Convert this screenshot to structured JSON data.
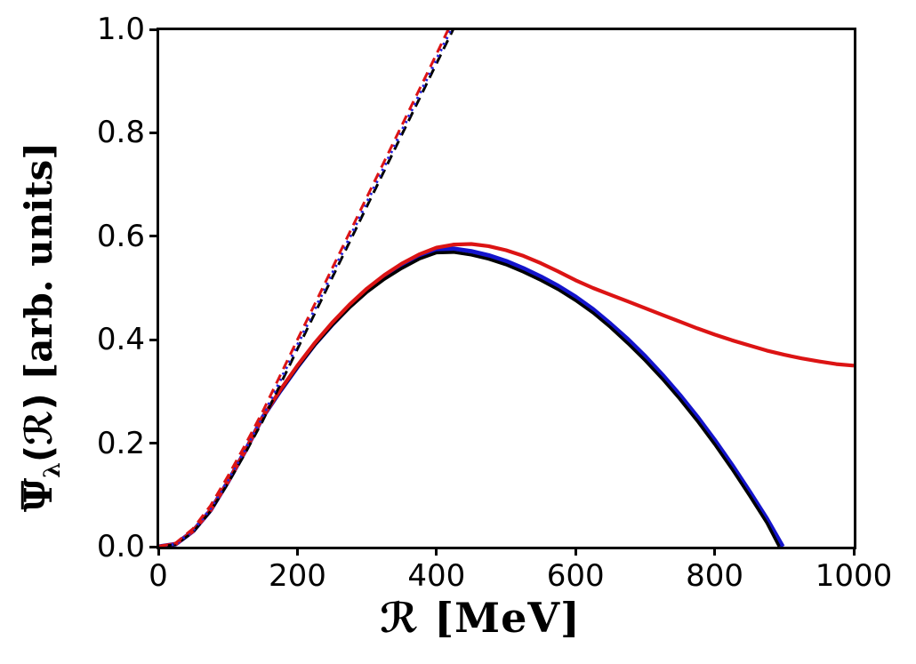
{
  "figure": {
    "background": "#ffffff",
    "xlabel": {
      "symbol": "ℛ",
      "unit": " [MeV]"
    },
    "ylabel": {
      "symbol": "Ψ",
      "has_overbar": true,
      "subscript": "λ",
      "arg": "(ℛ)",
      "unit": " [arb. units]"
    }
  },
  "chart_data": {
    "type": "line",
    "title": "",
    "xlabel": "R [MeV]",
    "ylabel": "Psi-bar_lambda(R) [arb. units]",
    "xlim": [
      0,
      1000
    ],
    "ylim": [
      0,
      1.0
    ],
    "grid": false,
    "legend": "none",
    "axis_color": "#000000",
    "x_ticks": [
      0,
      200,
      400,
      600,
      800,
      1000
    ],
    "x_tick_labels": [
      "0",
      "200",
      "400",
      "600",
      "800",
      "1000"
    ],
    "y_ticks": [
      0.0,
      0.2,
      0.4,
      0.6,
      0.8,
      1.0
    ],
    "y_tick_labels": [
      "0.0",
      "0.2",
      "0.4",
      "0.6",
      "0.8",
      "1.0"
    ],
    "series": [
      {
        "name": "blue-solid",
        "color": "#1414cc",
        "style": "solid",
        "width": 5,
        "points": [
          [
            0,
            0
          ],
          [
            25,
            0.005
          ],
          [
            50,
            0.03
          ],
          [
            75,
            0.07
          ],
          [
            100,
            0.125
          ],
          [
            125,
            0.185
          ],
          [
            150,
            0.25
          ],
          [
            175,
            0.3
          ],
          [
            200,
            0.347
          ],
          [
            225,
            0.391
          ],
          [
            250,
            0.429
          ],
          [
            275,
            0.464
          ],
          [
            300,
            0.494
          ],
          [
            325,
            0.52
          ],
          [
            350,
            0.543
          ],
          [
            375,
            0.562
          ],
          [
            400,
            0.574
          ],
          [
            425,
            0.576
          ],
          [
            450,
            0.571
          ],
          [
            475,
            0.563
          ],
          [
            500,
            0.552
          ],
          [
            525,
            0.538
          ],
          [
            550,
            0.522
          ],
          [
            575,
            0.504
          ],
          [
            600,
            0.483
          ],
          [
            625,
            0.459
          ],
          [
            650,
            0.431
          ],
          [
            675,
            0.401
          ],
          [
            700,
            0.368
          ],
          [
            725,
            0.332
          ],
          [
            750,
            0.293
          ],
          [
            775,
            0.251
          ],
          [
            800,
            0.206
          ],
          [
            825,
            0.158
          ],
          [
            850,
            0.107
          ],
          [
            875,
            0.054
          ],
          [
            898,
            0
          ]
        ]
      },
      {
        "name": "black-solid",
        "color": "#000000",
        "style": "solid",
        "width": 3.5,
        "points": [
          [
            0,
            0
          ],
          [
            25,
            0.005
          ],
          [
            50,
            0.03
          ],
          [
            75,
            0.07
          ],
          [
            100,
            0.125
          ],
          [
            125,
            0.185
          ],
          [
            150,
            0.25
          ],
          [
            175,
            0.3
          ],
          [
            200,
            0.347
          ],
          [
            225,
            0.39
          ],
          [
            250,
            0.428
          ],
          [
            275,
            0.462
          ],
          [
            300,
            0.492
          ],
          [
            325,
            0.517
          ],
          [
            350,
            0.538
          ],
          [
            375,
            0.556
          ],
          [
            400,
            0.568
          ],
          [
            425,
            0.569
          ],
          [
            450,
            0.564
          ],
          [
            475,
            0.556
          ],
          [
            500,
            0.545
          ],
          [
            525,
            0.531
          ],
          [
            550,
            0.515
          ],
          [
            575,
            0.497
          ],
          [
            600,
            0.476
          ],
          [
            625,
            0.452
          ],
          [
            650,
            0.424
          ],
          [
            675,
            0.393
          ],
          [
            700,
            0.36
          ],
          [
            725,
            0.324
          ],
          [
            750,
            0.285
          ],
          [
            775,
            0.243
          ],
          [
            800,
            0.198
          ],
          [
            825,
            0.15
          ],
          [
            850,
            0.099
          ],
          [
            875,
            0.046
          ],
          [
            893,
            0
          ]
        ]
      },
      {
        "name": "red-solid",
        "color": "#dc1414",
        "style": "solid",
        "width": 4.2,
        "points": [
          [
            0,
            0
          ],
          [
            25,
            0.005
          ],
          [
            50,
            0.03
          ],
          [
            75,
            0.07
          ],
          [
            100,
            0.125
          ],
          [
            125,
            0.185
          ],
          [
            150,
            0.25
          ],
          [
            175,
            0.302
          ],
          [
            200,
            0.35
          ],
          [
            225,
            0.394
          ],
          [
            250,
            0.433
          ],
          [
            275,
            0.468
          ],
          [
            300,
            0.499
          ],
          [
            325,
            0.525
          ],
          [
            350,
            0.547
          ],
          [
            375,
            0.565
          ],
          [
            400,
            0.578
          ],
          [
            425,
            0.584
          ],
          [
            450,
            0.585
          ],
          [
            475,
            0.581
          ],
          [
            500,
            0.573
          ],
          [
            525,
            0.562
          ],
          [
            550,
            0.548
          ],
          [
            575,
            0.532
          ],
          [
            600,
            0.515
          ],
          [
            625,
            0.5
          ],
          [
            650,
            0.487
          ],
          [
            675,
            0.474
          ],
          [
            700,
            0.461
          ],
          [
            725,
            0.448
          ],
          [
            750,
            0.435
          ],
          [
            775,
            0.422
          ],
          [
            800,
            0.41
          ],
          [
            825,
            0.399
          ],
          [
            850,
            0.389
          ],
          [
            875,
            0.379
          ],
          [
            900,
            0.371
          ],
          [
            925,
            0.364
          ],
          [
            950,
            0.358
          ],
          [
            975,
            0.353
          ],
          [
            1000,
            0.35
          ]
        ]
      },
      {
        "name": "black-dashed",
        "color": "#000000",
        "style": "dashed",
        "width": 3,
        "dash": "11,7",
        "dashoffset": 9,
        "points": [
          [
            0,
            0
          ],
          [
            25,
            0.004
          ],
          [
            50,
            0.028
          ],
          [
            75,
            0.068
          ],
          [
            100,
            0.122
          ],
          [
            125,
            0.181
          ],
          [
            150,
            0.243
          ],
          [
            175,
            0.312
          ],
          [
            200,
            0.382
          ],
          [
            225,
            0.451
          ],
          [
            250,
            0.52
          ],
          [
            275,
            0.589
          ],
          [
            300,
            0.658
          ],
          [
            325,
            0.727
          ],
          [
            350,
            0.796
          ],
          [
            375,
            0.865
          ],
          [
            400,
            0.934
          ],
          [
            424,
            1.0
          ]
        ]
      },
      {
        "name": "blue-dotted",
        "color": "#2222dd",
        "style": "dotted",
        "width": 3.2,
        "dash": "2.5,5",
        "dashoffset": 0,
        "points": [
          [
            0,
            0
          ],
          [
            25,
            0.005
          ],
          [
            50,
            0.031
          ],
          [
            75,
            0.073
          ],
          [
            100,
            0.128
          ],
          [
            125,
            0.188
          ],
          [
            150,
            0.251
          ],
          [
            175,
            0.32
          ],
          [
            200,
            0.39
          ],
          [
            225,
            0.459
          ],
          [
            250,
            0.528
          ],
          [
            275,
            0.597
          ],
          [
            300,
            0.666
          ],
          [
            325,
            0.735
          ],
          [
            350,
            0.804
          ],
          [
            375,
            0.873
          ],
          [
            400,
            0.942
          ],
          [
            421,
            1.0
          ]
        ]
      },
      {
        "name": "red-dashed",
        "color": "#dc1414",
        "style": "dashed",
        "width": 3,
        "dash": "11,7",
        "dashoffset": 0,
        "points": [
          [
            0,
            0
          ],
          [
            25,
            0.007
          ],
          [
            50,
            0.035
          ],
          [
            75,
            0.079
          ],
          [
            100,
            0.136
          ],
          [
            125,
            0.197
          ],
          [
            150,
            0.261
          ],
          [
            175,
            0.33
          ],
          [
            200,
            0.4
          ],
          [
            225,
            0.469
          ],
          [
            250,
            0.538
          ],
          [
            275,
            0.607
          ],
          [
            300,
            0.676
          ],
          [
            325,
            0.745
          ],
          [
            350,
            0.814
          ],
          [
            375,
            0.883
          ],
          [
            400,
            0.952
          ],
          [
            417,
            1.0
          ]
        ]
      }
    ]
  }
}
